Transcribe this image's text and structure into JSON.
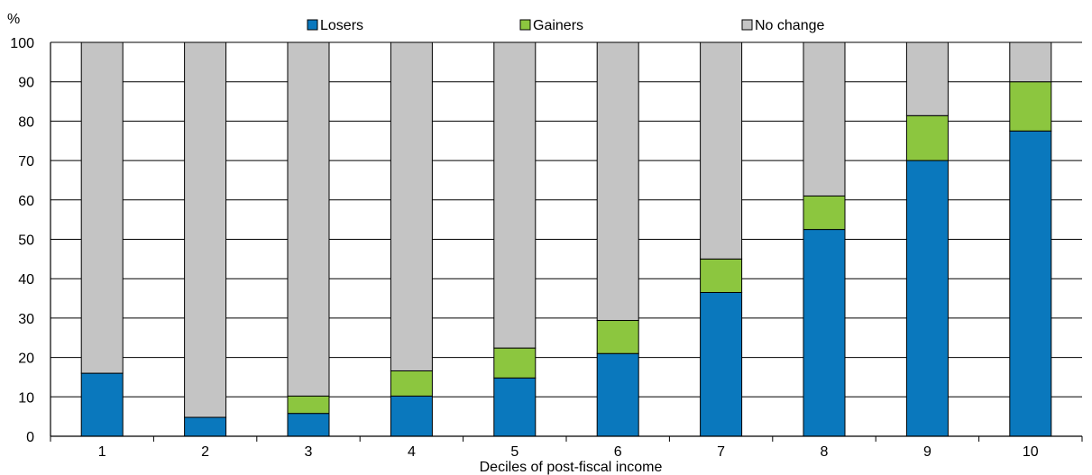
{
  "chart_data": {
    "type": "bar",
    "stacked": true,
    "y_unit_label": "%",
    "xlabel": "Deciles of post-fiscal income",
    "ylim": [
      0,
      100
    ],
    "yticks": [
      0,
      10,
      20,
      30,
      40,
      50,
      60,
      70,
      80,
      90,
      100
    ],
    "grid": true,
    "legend_position": "top",
    "categories": [
      "1",
      "2",
      "3",
      "4",
      "5",
      "6",
      "7",
      "8",
      "9",
      "10"
    ],
    "series": [
      {
        "name": "Losers",
        "color": "#0a78bd",
        "values": [
          16,
          4.8,
          5.8,
          10.2,
          14.8,
          21,
          36.5,
          52.5,
          70,
          77.5
        ]
      },
      {
        "name": "Gainers",
        "color": "#8cc63f",
        "values": [
          0,
          0,
          4.4,
          6.4,
          7.6,
          8.4,
          8.5,
          8.5,
          11.4,
          12.5
        ]
      },
      {
        "name": "No change",
        "color": "#c4c4c4",
        "values": [
          84,
          95.2,
          89.8,
          83.4,
          77.6,
          70.6,
          55,
          39,
          18.6,
          10
        ]
      }
    ]
  }
}
